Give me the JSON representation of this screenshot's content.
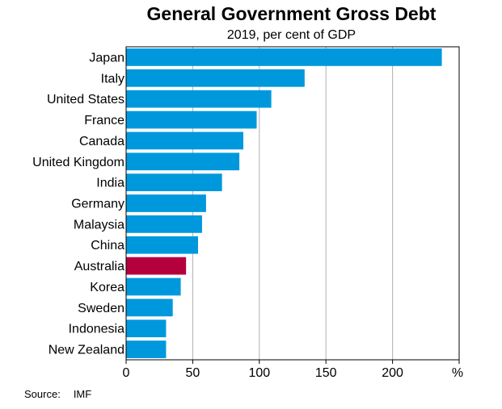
{
  "chart_data": {
    "type": "bar",
    "orientation": "horizontal",
    "title": "General Government Gross Debt",
    "subtitle": "2019, per cent of GDP",
    "unit_label": "%",
    "categories": [
      "Japan",
      "Italy",
      "United States",
      "France",
      "Canada",
      "United Kingdom",
      "India",
      "Germany",
      "Malaysia",
      "China",
      "Australia",
      "Korea",
      "Sweden",
      "Indonesia",
      "New Zealand"
    ],
    "values": [
      237,
      134,
      109,
      98,
      88,
      85,
      72,
      60,
      57,
      54,
      45,
      41,
      35,
      30,
      30
    ],
    "highlight_category": "Australia",
    "xlim": [
      0,
      250
    ],
    "xticks": [
      0,
      50,
      100,
      150,
      200
    ],
    "grid": true,
    "colors": {
      "bar": "#0098dd",
      "highlight": "#b5003e",
      "grid": "#b0b0b0",
      "axis": "#000000"
    },
    "source_label": "Source:",
    "source": "IMF"
  }
}
